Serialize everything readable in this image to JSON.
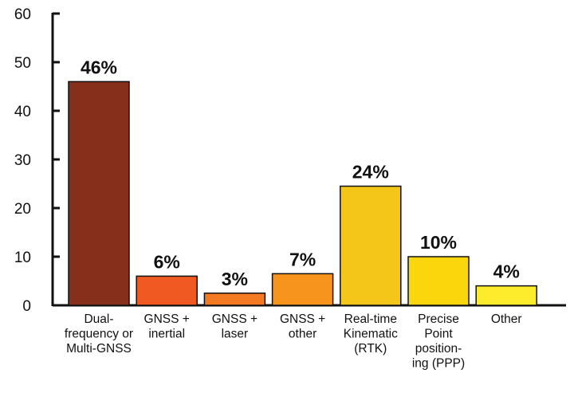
{
  "chart_data": {
    "type": "bar",
    "title": "",
    "xlabel": "",
    "ylabel": "",
    "ylim": [
      0,
      60
    ],
    "yticks": [
      0,
      10,
      20,
      30,
      40,
      50,
      60
    ],
    "grid": false,
    "legend": "none",
    "categories": [
      "Dual-frequency or Multi-GNSS",
      "GNSS + inertial",
      "GNSS + laser",
      "GNSS + other",
      "Real-time Kinematic (RTK)",
      "Precise Point positioning (PPP)",
      "Other"
    ],
    "category_lines": [
      [
        "Dual-",
        "frequency or",
        "Multi-GNSS"
      ],
      [
        "GNSS +",
        "inertial"
      ],
      [
        "GNSS +",
        "laser"
      ],
      [
        "GNSS +",
        "other"
      ],
      [
        "Real-time",
        "Kinematic",
        "(RTK)"
      ],
      [
        "Precise",
        "Point",
        "position-",
        "ing (PPP)"
      ],
      [
        "Other"
      ]
    ],
    "values": [
      46,
      6,
      2.5,
      6.5,
      24.5,
      10,
      4
    ],
    "data_labels": [
      "46%",
      "6%",
      "3%",
      "7%",
      "24%",
      "10%",
      "4%"
    ],
    "colors": [
      "#86301c",
      "#f05a22",
      "#f37a23",
      "#f6941d",
      "#f4c61a",
      "#fcd60c",
      "#fcec2b"
    ]
  }
}
